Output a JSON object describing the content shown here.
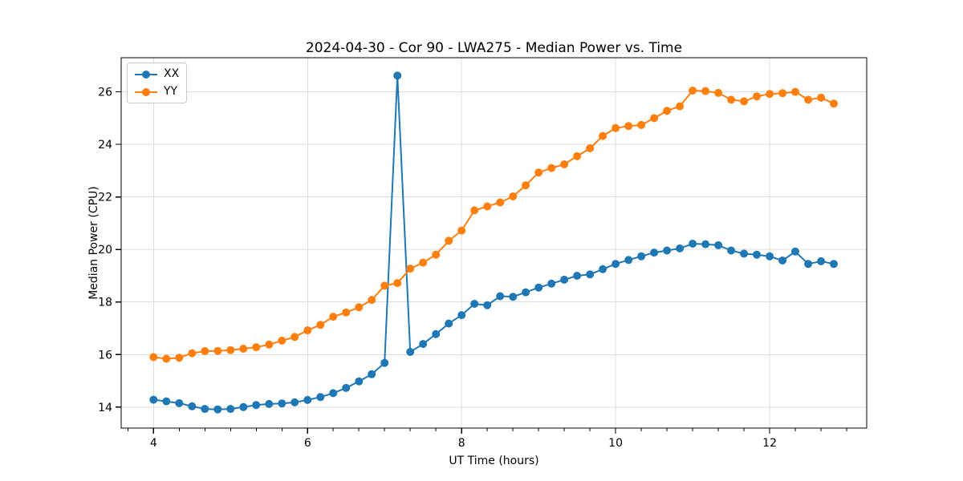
{
  "chart_data": {
    "type": "line",
    "title": "2024-04-30 - Cor 90 - LWA275 - Median Power vs. Time",
    "xlabel": "UT Time (hours)",
    "ylabel": "Median Power (CPU)",
    "xlim": [
      3.58,
      13.26
    ],
    "ylim": [
      13.2,
      27.3
    ],
    "xticks": [
      4,
      6,
      8,
      10,
      12
    ],
    "yticks": [
      14,
      16,
      18,
      20,
      22,
      24,
      26
    ],
    "x_minor_step": 0.33333,
    "grid": true,
    "grid_color": "#dcdcdc",
    "spine_color": "#000000",
    "background": "#ffffff",
    "legend_position": "upper-left",
    "marker": "circle",
    "x": [
      4.0,
      4.167,
      4.333,
      4.5,
      4.667,
      4.833,
      5.0,
      5.167,
      5.333,
      5.5,
      5.667,
      5.833,
      6.0,
      6.167,
      6.333,
      6.5,
      6.667,
      6.833,
      7.0,
      7.167,
      7.333,
      7.5,
      7.667,
      7.833,
      8.0,
      8.167,
      8.333,
      8.5,
      8.667,
      8.833,
      9.0,
      9.167,
      9.333,
      9.5,
      9.667,
      9.833,
      10.0,
      10.167,
      10.333,
      10.5,
      10.667,
      10.833,
      11.0,
      11.167,
      11.333,
      11.5,
      11.667,
      11.833,
      12.0,
      12.167,
      12.333,
      12.5,
      12.667,
      12.833
    ],
    "series": [
      {
        "name": "XX",
        "color": "#1f77b4",
        "values": [
          14.28,
          14.22,
          14.15,
          14.03,
          13.93,
          13.91,
          13.93,
          14.0,
          14.08,
          14.12,
          14.14,
          14.18,
          14.27,
          14.38,
          14.53,
          14.73,
          14.98,
          15.25,
          15.68,
          26.62,
          16.1,
          16.4,
          16.78,
          17.18,
          17.5,
          17.93,
          17.88,
          18.22,
          18.2,
          18.37,
          18.55,
          18.7,
          18.85,
          19.0,
          19.05,
          19.25,
          19.45,
          19.6,
          19.74,
          19.88,
          19.96,
          20.04,
          20.22,
          20.2,
          20.16,
          19.96,
          19.84,
          19.8,
          19.74,
          19.58,
          19.92,
          19.45,
          19.55,
          19.45
        ]
      },
      {
        "name": "YY",
        "color": "#ff7f0e",
        "values": [
          15.9,
          15.84,
          15.88,
          16.05,
          16.13,
          16.14,
          16.17,
          16.22,
          16.28,
          16.38,
          16.53,
          16.67,
          16.92,
          17.13,
          17.44,
          17.6,
          17.8,
          18.08,
          18.62,
          18.72,
          19.27,
          19.5,
          19.8,
          20.33,
          20.72,
          21.49,
          21.64,
          21.79,
          22.02,
          22.44,
          22.93,
          23.1,
          23.24,
          23.55,
          23.85,
          24.32,
          24.62,
          24.7,
          24.74,
          25.0,
          25.28,
          25.45,
          26.05,
          26.03,
          25.96,
          25.7,
          25.64,
          25.83,
          25.92,
          25.95,
          26.0,
          25.7,
          25.78,
          25.55
        ]
      }
    ]
  }
}
